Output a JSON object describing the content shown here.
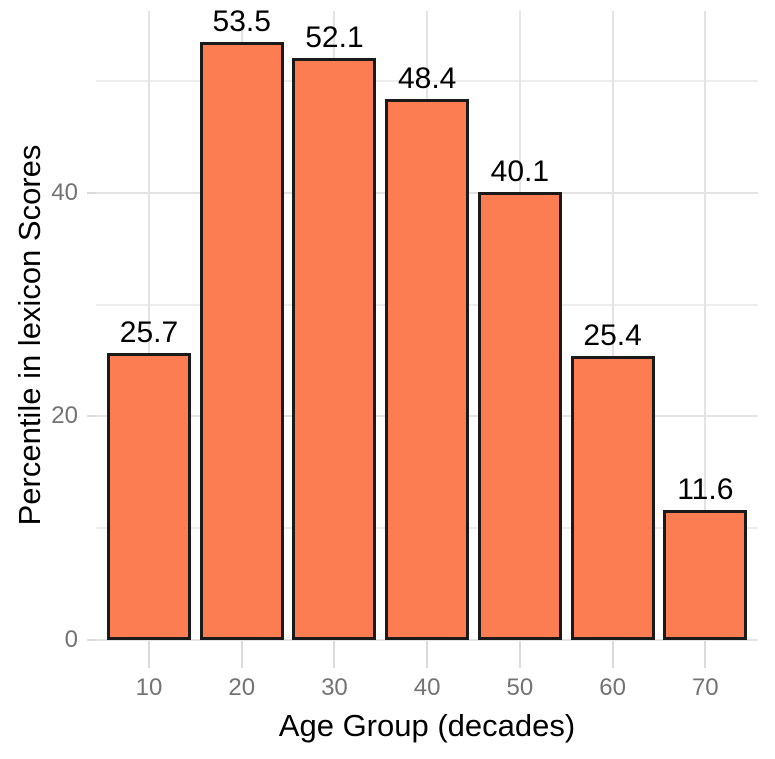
{
  "chart_data": {
    "type": "bar",
    "title": "",
    "xlabel": "Age Group (decades)",
    "ylabel": "Percentile in lexicon Scores",
    "categories": [
      10,
      20,
      30,
      40,
      50,
      60,
      70
    ],
    "values": [
      25.7,
      53.5,
      52.1,
      48.4,
      40.1,
      25.4,
      11.6
    ],
    "bar_value_labels": [
      "25.7",
      "53.5",
      "52.1",
      "48.4",
      "40.1",
      "25.4",
      "11.6"
    ],
    "x_tick_labels": [
      "10",
      "20",
      "30",
      "40",
      "50",
      "60",
      "70"
    ],
    "y_major_ticks": [
      {
        "value": 0,
        "label": "0"
      },
      {
        "value": 20,
        "label": "20"
      },
      {
        "value": 40,
        "label": "40"
      }
    ],
    "y_minor_gridlines": [
      10,
      30,
      50
    ],
    "ylim": [
      0,
      56.28
    ],
    "grid": true,
    "legend_position": "none",
    "colors": {
      "bar_fill": "#FC7D52",
      "bar_stroke": "#1A1A1A",
      "grid_major": "#E3E3E3",
      "grid_minor": "#EDEDED",
      "tick_mark": "#DBDBDB",
      "axis_text": "#737373",
      "axis_title": "#000000",
      "value_label": "#000000",
      "background": "#FFFFFF"
    }
  }
}
